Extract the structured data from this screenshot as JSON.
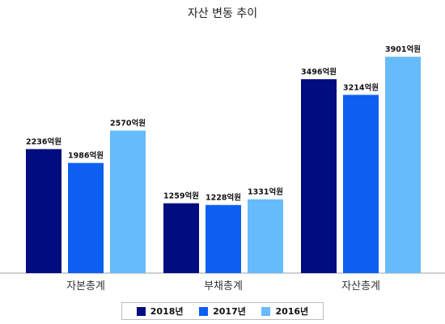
{
  "chart_data": {
    "type": "bar",
    "title": "자산 변동 추이",
    "categories": [
      "자본총계",
      "부채총계",
      "자산총계"
    ],
    "unit_suffix": "억원",
    "series": [
      {
        "name": "2018년",
        "color": "#000c80",
        "values": [
          2236,
          1259,
          3496
        ]
      },
      {
        "name": "2017년",
        "color": "#0d5ff2",
        "values": [
          1986,
          1228,
          3214
        ]
      },
      {
        "name": "2016년",
        "color": "#66bbfb",
        "values": [
          2570,
          1331,
          3901
        ]
      }
    ],
    "ylim": [
      0,
      4400
    ],
    "grid": false,
    "legend_position": "bottom"
  }
}
